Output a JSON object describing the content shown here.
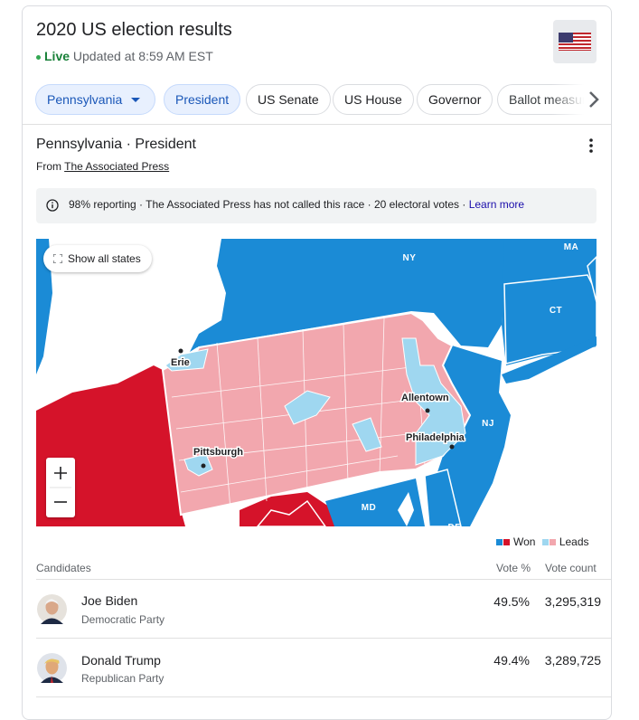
{
  "header": {
    "title": "2020 US election results",
    "status": "Live",
    "updated": "Updated at 8:59 AM EST"
  },
  "tabs": [
    "Pennsylvania",
    "President",
    "US Senate",
    "US House",
    "Governor",
    "Ballot measures"
  ],
  "race": {
    "title": "Pennsylvania · President",
    "source_prefix": "From",
    "source": "The Associated Press"
  },
  "notice": {
    "text": "98% reporting · The Associated Press has not called this race · 20 electoral votes ·",
    "link": "Learn more"
  },
  "map": {
    "show_all": "Show all states",
    "states": [
      "NY",
      "MA",
      "CT",
      "NJ",
      "MD",
      "DE"
    ],
    "cities": [
      "Erie",
      "Allentown",
      "Philadelphia",
      "Pittsburgh"
    ]
  },
  "legend": {
    "won": "Won",
    "leads": "Leads"
  },
  "table": {
    "headers": [
      "Candidates",
      "Vote %",
      "Vote count"
    ],
    "rows": [
      {
        "name": "Joe Biden",
        "party": "Democratic Party",
        "percent": "49.5%",
        "votes": "3,295,319"
      },
      {
        "name": "Donald Trump",
        "party": "Republican Party",
        "percent": "49.4%",
        "votes": "3,289,725"
      }
    ]
  }
}
